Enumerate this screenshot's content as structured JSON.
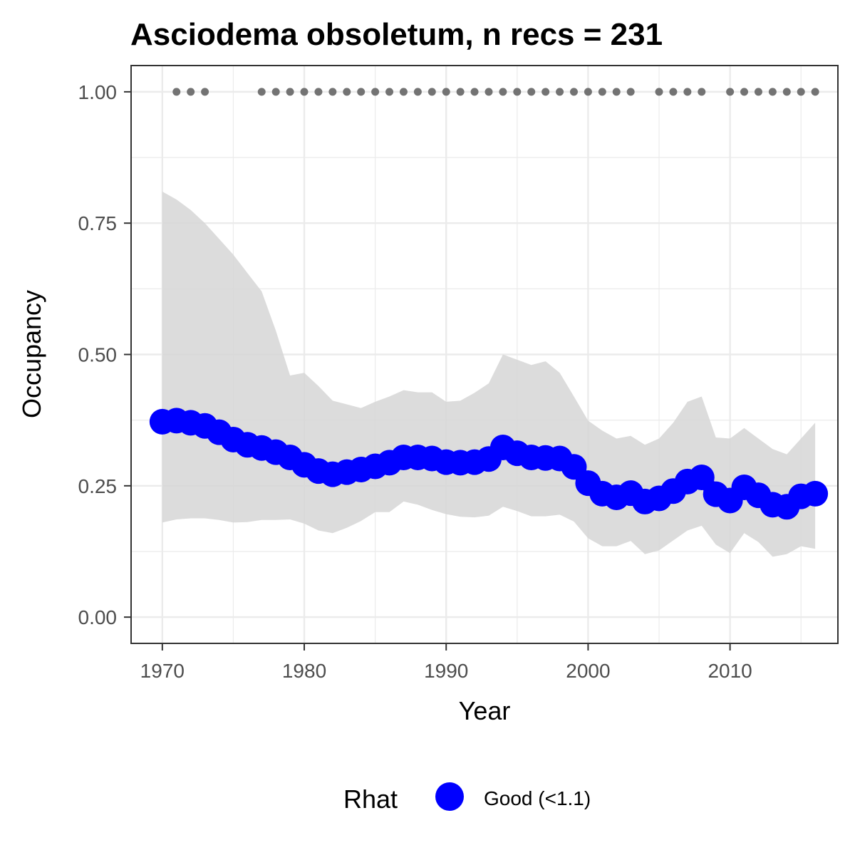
{
  "chart_data": {
    "type": "line",
    "title": "Asciodema obsoletum, n recs = 231",
    "xlabel": "Year",
    "ylabel": "Occupancy",
    "xlim": [
      1967.8,
      2017.6
    ],
    "ylim": [
      -0.05,
      1.05
    ],
    "x_ticks": [
      1970,
      1980,
      1990,
      2000,
      2010
    ],
    "y_ticks": [
      0.0,
      0.25,
      0.5,
      0.75,
      1.0
    ],
    "x_tick_labels": [
      "1970",
      "1980",
      "1990",
      "2000",
      "2010"
    ],
    "y_tick_labels": [
      "0.00",
      "0.25",
      "0.50",
      "0.75",
      "1.00"
    ],
    "grid": true,
    "legend": {
      "title": "Rhat",
      "position": "bottom",
      "entries": [
        {
          "label": "Good (<1.1)",
          "color": "#0000ff"
        }
      ]
    },
    "colors": {
      "series": "#0000ff",
      "ribbon": "#d6d6d6",
      "records": "#737373",
      "grid": "#ebebeb",
      "panel_border": "#333333"
    },
    "x": [
      1970,
      1971,
      1972,
      1973,
      1974,
      1975,
      1976,
      1977,
      1978,
      1979,
      1980,
      1981,
      1982,
      1983,
      1984,
      1985,
      1986,
      1987,
      1988,
      1989,
      1990,
      1991,
      1992,
      1993,
      1994,
      1995,
      1996,
      1997,
      1998,
      1999,
      2000,
      2001,
      2002,
      2003,
      2004,
      2005,
      2006,
      2007,
      2008,
      2009,
      2010,
      2011,
      2012,
      2013,
      2014,
      2015,
      2016
    ],
    "series": [
      {
        "name": "Good (<1.1)",
        "values": [
          0.372,
          0.374,
          0.37,
          0.364,
          0.352,
          0.338,
          0.328,
          0.322,
          0.314,
          0.304,
          0.29,
          0.278,
          0.272,
          0.276,
          0.281,
          0.287,
          0.294,
          0.304,
          0.304,
          0.302,
          0.295,
          0.294,
          0.295,
          0.301,
          0.323,
          0.312,
          0.304,
          0.303,
          0.302,
          0.286,
          0.255,
          0.235,
          0.228,
          0.236,
          0.22,
          0.226,
          0.24,
          0.258,
          0.266,
          0.234,
          0.222,
          0.247,
          0.232,
          0.214,
          0.21,
          0.23,
          0.235
        ]
      }
    ],
    "ribbon": {
      "lower": [
        0.18,
        0.186,
        0.188,
        0.188,
        0.185,
        0.18,
        0.181,
        0.185,
        0.185,
        0.186,
        0.178,
        0.165,
        0.16,
        0.17,
        0.183,
        0.2,
        0.2,
        0.22,
        0.214,
        0.204,
        0.196,
        0.191,
        0.19,
        0.193,
        0.21,
        0.202,
        0.192,
        0.192,
        0.195,
        0.182,
        0.15,
        0.135,
        0.135,
        0.145,
        0.12,
        0.127,
        0.146,
        0.165,
        0.174,
        0.138,
        0.122,
        0.16,
        0.143,
        0.115,
        0.12,
        0.135,
        0.13
      ],
      "upper": [
        0.81,
        0.795,
        0.775,
        0.75,
        0.72,
        0.69,
        0.655,
        0.62,
        0.545,
        0.46,
        0.465,
        0.44,
        0.412,
        0.405,
        0.398,
        0.41,
        0.42,
        0.432,
        0.428,
        0.428,
        0.41,
        0.412,
        0.427,
        0.445,
        0.5,
        0.49,
        0.48,
        0.487,
        0.465,
        0.42,
        0.374,
        0.355,
        0.34,
        0.345,
        0.328,
        0.34,
        0.37,
        0.41,
        0.42,
        0.342,
        0.34,
        0.36,
        0.34,
        0.32,
        0.31,
        0.34,
        0.37
      ]
    },
    "records": {
      "y": 1.0,
      "years": [
        1971,
        1972,
        1973,
        1977,
        1978,
        1979,
        1980,
        1981,
        1982,
        1983,
        1984,
        1985,
        1986,
        1987,
        1988,
        1989,
        1990,
        1991,
        1992,
        1993,
        1994,
        1995,
        1996,
        1997,
        1998,
        1999,
        2000,
        2001,
        2002,
        2003,
        2005,
        2006,
        2007,
        2008,
        2010,
        2011,
        2012,
        2013,
        2014,
        2015,
        2016
      ]
    }
  }
}
